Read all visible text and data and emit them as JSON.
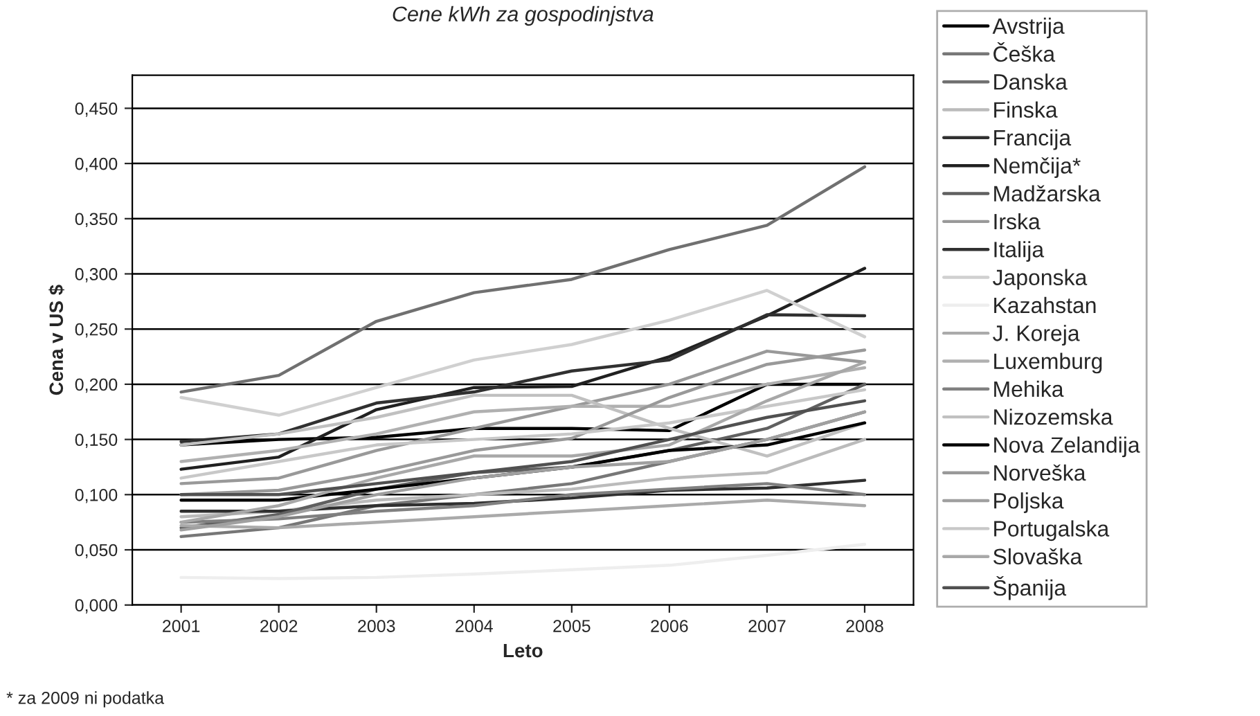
{
  "chart_data": {
    "type": "line",
    "title": "Cene kWh za gospodinjstva",
    "xlabel": "Leto",
    "ylabel": "Cena v US $",
    "categories": [
      "2001",
      "2002",
      "2003",
      "2004",
      "2005",
      "2006",
      "2007",
      "2008"
    ],
    "ylim": [
      0,
      0.48
    ],
    "yticks": [
      {
        "value": 0,
        "label": "0,000"
      },
      {
        "value": 0.05,
        "label": "0,050"
      },
      {
        "value": 0.1,
        "label": "0,100"
      },
      {
        "value": 0.15,
        "label": "0,150"
      },
      {
        "value": 0.2,
        "label": "0,200"
      },
      {
        "value": 0.25,
        "label": "0,250"
      },
      {
        "value": 0.3,
        "label": "0,300"
      },
      {
        "value": 0.35,
        "label": "0,350"
      },
      {
        "value": 0.4,
        "label": "0,400"
      },
      {
        "value": 0.45,
        "label": "0,450"
      }
    ],
    "grid": "y",
    "legend": "right",
    "marker": "none",
    "line_style": "solid",
    "annotations": [
      "* za 2009 ni podatka"
    ],
    "series": [
      {
        "name": "Avstrija",
        "color": "#000000",
        "values": [
          0.145,
          0.15,
          0.152,
          0.16,
          0.16,
          0.158,
          0.2,
          0.2
        ]
      },
      {
        "name": "Češka",
        "color": "#777777",
        "values": [
          0.062,
          0.07,
          0.09,
          0.1,
          0.11,
          0.13,
          0.15,
          0.175
        ]
      },
      {
        "name": "Danska",
        "color": "#707070",
        "values": [
          0.193,
          0.208,
          0.257,
          0.283,
          0.295,
          0.322,
          0.344,
          0.397
        ]
      },
      {
        "name": "Finska",
        "color": "#bbbbbb",
        "values": [
          0.08,
          0.085,
          0.095,
          0.1,
          0.105,
          0.115,
          0.12,
          0.15
        ]
      },
      {
        "name": "Francija",
        "color": "#303030",
        "values": [
          0.085,
          0.085,
          0.09,
          0.092,
          0.097,
          0.104,
          0.106,
          0.113
        ]
      },
      {
        "name": "Nemčija*",
        "color": "#202020",
        "values": [
          0.123,
          0.134,
          0.177,
          0.197,
          0.198,
          0.225,
          0.262,
          0.305
        ]
      },
      {
        "name": "Madžarska",
        "color": "#606060",
        "values": [
          0.07,
          0.082,
          0.105,
          0.12,
          0.125,
          0.14,
          0.16,
          0.2
        ]
      },
      {
        "name": "Irska",
        "color": "#999999",
        "values": [
          0.11,
          0.115,
          0.14,
          0.16,
          0.18,
          0.2,
          0.23,
          0.22
        ]
      },
      {
        "name": "Italija",
        "color": "#303030",
        "values": [
          0.148,
          0.155,
          0.183,
          0.193,
          0.212,
          0.222,
          0.263,
          0.262
        ]
      },
      {
        "name": "Japonska",
        "color": "#d0d0d0",
        "values": [
          0.188,
          0.172,
          0.197,
          0.222,
          0.236,
          0.258,
          0.285,
          0.243
        ]
      },
      {
        "name": "Kazahstan",
        "color": "#eeeeee",
        "values": [
          0.025,
          0.024,
          0.025,
          0.028,
          0.032,
          0.036,
          0.045,
          0.055
        ]
      },
      {
        "name": "J. Koreja",
        "color": "#aaaaaa",
        "values": [
          0.072,
          0.07,
          0.075,
          0.08,
          0.085,
          0.09,
          0.095,
          0.09
        ]
      },
      {
        "name": "Luxemburg",
        "color": "#b0b0b0",
        "values": [
          0.13,
          0.14,
          0.155,
          0.175,
          0.18,
          0.18,
          0.2,
          0.215
        ]
      },
      {
        "name": "Mehika",
        "color": "#808080",
        "values": [
          0.075,
          0.078,
          0.085,
          0.09,
          0.1,
          0.105,
          0.11,
          0.1
        ]
      },
      {
        "name": "Nizozemska",
        "color": "#c0c0c0",
        "values": [
          0.145,
          0.155,
          0.17,
          0.19,
          0.19,
          0.16,
          0.135,
          0.165
        ]
      },
      {
        "name": "Nova Zelandija",
        "color": "#000000",
        "values": [
          0.095,
          0.095,
          0.105,
          0.115,
          0.125,
          0.14,
          0.145,
          0.165
        ]
      },
      {
        "name": "Norveška",
        "color": "#999999",
        "values": [
          0.1,
          0.104,
          0.12,
          0.14,
          0.151,
          0.188,
          0.218,
          0.231
        ]
      },
      {
        "name": "Poljska",
        "color": "#a0a0a0",
        "values": [
          0.068,
          0.08,
          0.1,
          0.115,
          0.125,
          0.13,
          0.15,
          0.175
        ]
      },
      {
        "name": "Portugalska",
        "color": "#c8c8c8",
        "values": [
          0.115,
          0.13,
          0.145,
          0.15,
          0.155,
          0.165,
          0.18,
          0.195
        ]
      },
      {
        "name": "Slovaška",
        "color": "#a8a8a8",
        "values": [
          0.075,
          0.09,
          0.115,
          0.135,
          0.135,
          0.145,
          0.185,
          0.22
        ]
      },
      {
        "name": "Španija",
        "color": "#505050",
        "values": [
          0.1,
          0.1,
          0.11,
          0.12,
          0.13,
          0.15,
          0.17,
          0.185
        ]
      }
    ]
  }
}
